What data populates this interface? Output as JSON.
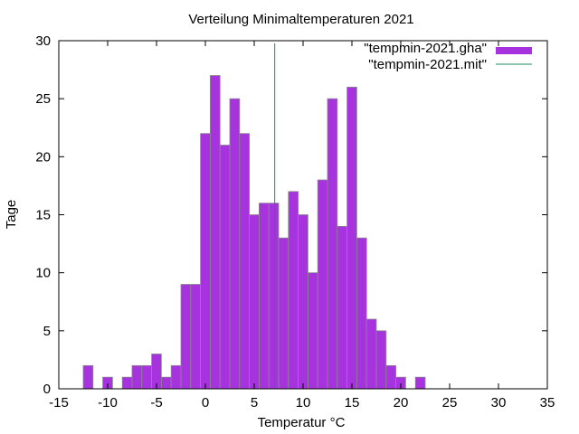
{
  "chart_data": {
    "type": "bar",
    "title": "Verteilung Minimaltemperaturen 2021",
    "xlabel": "Temperatur °C",
    "ylabel": "Tage",
    "xlim": [
      -15,
      35
    ],
    "ylim": [
      0,
      30
    ],
    "xticks": [
      -15,
      -10,
      -5,
      0,
      5,
      10,
      15,
      20,
      25,
      30,
      35
    ],
    "yticks": [
      0,
      5,
      10,
      15,
      20,
      25,
      30
    ],
    "bin_width": 1,
    "grid": false,
    "legend_position": "top-right",
    "series": [
      {
        "name": "\"tempmin-2021.gha\"",
        "kind": "histogram",
        "color": "#a633de",
        "edge_color": "#8a8a8a",
        "bins": [
          {
            "x": -12,
            "value": 2
          },
          {
            "x": -10,
            "value": 1
          },
          {
            "x": -8,
            "value": 1
          },
          {
            "x": -7,
            "value": 2
          },
          {
            "x": -6,
            "value": 2
          },
          {
            "x": -5,
            "value": 3
          },
          {
            "x": -4,
            "value": 1
          },
          {
            "x": -3,
            "value": 2
          },
          {
            "x": -2,
            "value": 9
          },
          {
            "x": -1,
            "value": 9
          },
          {
            "x": 0,
            "value": 22
          },
          {
            "x": 1,
            "value": 27
          },
          {
            "x": 2,
            "value": 21
          },
          {
            "x": 3,
            "value": 25
          },
          {
            "x": 4,
            "value": 22
          },
          {
            "x": 5,
            "value": 15
          },
          {
            "x": 6,
            "value": 16
          },
          {
            "x": 7,
            "value": 16
          },
          {
            "x": 8,
            "value": 13
          },
          {
            "x": 9,
            "value": 17
          },
          {
            "x": 10,
            "value": 15
          },
          {
            "x": 11,
            "value": 10
          },
          {
            "x": 12,
            "value": 18
          },
          {
            "x": 13,
            "value": 25
          },
          {
            "x": 14,
            "value": 14
          },
          {
            "x": 15,
            "value": 26
          },
          {
            "x": 16,
            "value": 13
          },
          {
            "x": 17,
            "value": 6
          },
          {
            "x": 18,
            "value": 5
          },
          {
            "x": 19,
            "value": 2
          },
          {
            "x": 20,
            "value": 1
          },
          {
            "x": 22,
            "value": 1
          }
        ]
      },
      {
        "name": "\"tempmin-2021.mit\"",
        "kind": "vertical-line",
        "color": "#1f8a5e",
        "x": 7.1
      }
    ]
  }
}
